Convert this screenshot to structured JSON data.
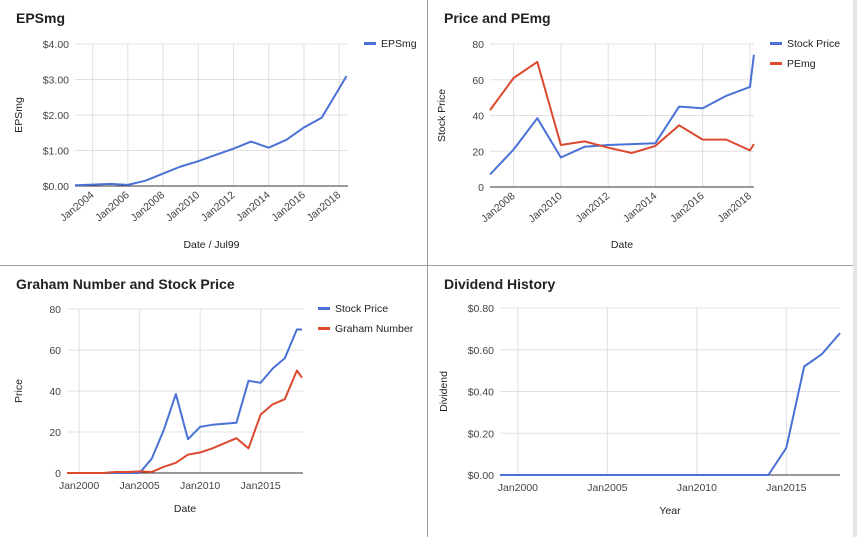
{
  "charts": [
    {
      "title": "EPSmg",
      "type": "line",
      "xlabel": "Date / Jul99",
      "ylabel": "EPSmg",
      "y_ticks": [
        "$4.00",
        "$3.00",
        "$2.00",
        "$1.00",
        "$0.00"
      ],
      "x_ticks": [
        "Jan2004",
        "Jan2006",
        "Jan2008",
        "Jan2010",
        "Jan2012",
        "Jan2014",
        "Jan2016",
        "Jan2018"
      ],
      "legend": "top-right",
      "series": [
        {
          "name": "EPSmg",
          "color": "#4a72d6"
        }
      ]
    },
    {
      "title": "Price and PEmg",
      "type": "line",
      "xlabel": "Date",
      "ylabel": "Stock Price",
      "y_ticks": [
        "80",
        "60",
        "40",
        "20",
        "0"
      ],
      "x_ticks": [
        "Jan2008",
        "Jan2010",
        "Jan2012",
        "Jan2014",
        "Jan2016",
        "Jan2018"
      ],
      "legend": "top-right",
      "series": [
        {
          "name": "Stock Price",
          "color": "#4a72d6"
        },
        {
          "name": "PEmg",
          "color": "#db4a2e"
        }
      ]
    },
    {
      "title": "Graham Number and Stock Price",
      "type": "line",
      "xlabel": "Date",
      "ylabel": "Price",
      "y_ticks": [
        "80",
        "60",
        "40",
        "20",
        "0"
      ],
      "x_ticks": [
        "Jan2000",
        "Jan2005",
        "Jan2010",
        "Jan2015"
      ],
      "legend": "top-right",
      "series": [
        {
          "name": "Stock Price",
          "color": "#4a72d6"
        },
        {
          "name": "Graham Number",
          "color": "#db4a2e"
        }
      ]
    },
    {
      "title": "Dividend History",
      "type": "line",
      "xlabel": "Year",
      "ylabel": "Dividend",
      "y_ticks": [
        "$0.80",
        "$0.60",
        "$0.40",
        "$0.20",
        "$0.00"
      ],
      "x_ticks": [
        "Jan2000",
        "Jan2005",
        "Jan2010",
        "Jan2015"
      ],
      "legend": "none",
      "series": [
        {
          "name": "",
          "color": "#4a72d6"
        }
      ]
    }
  ],
  "chart_data": [
    {
      "type": "line",
      "title": "EPSmg",
      "xlabel": "Date / Jul99",
      "ylabel": "EPSmg",
      "ylim": [
        0,
        4
      ],
      "x": [
        "2003-01",
        "2004-01",
        "2005-01",
        "2006-01",
        "2007-01",
        "2008-01",
        "2009-01",
        "2010-01",
        "2011-01",
        "2012-01",
        "2013-01",
        "2014-01",
        "2015-01",
        "2016-01",
        "2017-01",
        "2018-01",
        "2018-06"
      ],
      "series": [
        {
          "name": "EPSmg",
          "values": [
            0.02,
            0.04,
            0.06,
            0.03,
            0.15,
            0.35,
            0.55,
            0.7,
            0.88,
            1.05,
            1.25,
            1.08,
            1.3,
            1.65,
            1.92,
            2.75,
            3.1
          ]
        }
      ]
    },
    {
      "type": "line",
      "title": "Price and PEmg",
      "xlabel": "Date",
      "ylabel": "Stock Price",
      "ylim": [
        0,
        80
      ],
      "x": [
        "2007-01",
        "2008-01",
        "2009-01",
        "2010-01",
        "2011-01",
        "2012-01",
        "2013-01",
        "2014-01",
        "2015-01",
        "2016-01",
        "2017-01",
        "2018-01",
        "2018-03"
      ],
      "series": [
        {
          "name": "Stock Price",
          "values": [
            7,
            21,
            38.5,
            16.5,
            22.5,
            23.5,
            24,
            24.5,
            45,
            44,
            51,
            56,
            74
          ]
        },
        {
          "name": "PEmg",
          "values": [
            43,
            61,
            70,
            23.5,
            25.5,
            22,
            19,
            23,
            34.5,
            26.5,
            26.5,
            20.5,
            24
          ]
        }
      ]
    },
    {
      "type": "line",
      "title": "Graham Number and Stock Price",
      "xlabel": "Date",
      "ylabel": "Price",
      "ylim": [
        0,
        80
      ],
      "x": [
        "1999-01",
        "2000-01",
        "2001-01",
        "2002-01",
        "2003-01",
        "2004-01",
        "2005-01",
        "2006-01",
        "2007-01",
        "2008-01",
        "2009-01",
        "2010-01",
        "2011-01",
        "2012-01",
        "2013-01",
        "2014-01",
        "2015-01",
        "2016-01",
        "2017-01",
        "2018-01",
        "2018-06"
      ],
      "series": [
        {
          "name": "Stock Price",
          "values": [
            0,
            0,
            0,
            0,
            0,
            0,
            0,
            7,
            21,
            38.5,
            16.5,
            22.5,
            23.5,
            24,
            24.5,
            45,
            44,
            51,
            56,
            70,
            70
          ]
        },
        {
          "name": "Graham Number",
          "values": [
            0,
            0,
            0,
            0,
            0.5,
            0.5,
            0.8,
            0.5,
            3,
            5,
            9,
            10,
            12,
            14.5,
            17,
            12,
            28.5,
            33.5,
            36,
            50,
            46.5
          ]
        }
      ]
    },
    {
      "type": "line",
      "title": "Dividend History",
      "xlabel": "Year",
      "ylabel": "Dividend",
      "ylim": [
        0,
        0.8
      ],
      "x": [
        "1999",
        "2000",
        "2001",
        "2002",
        "2003",
        "2004",
        "2005",
        "2006",
        "2007",
        "2008",
        "2009",
        "2010",
        "2011",
        "2012",
        "2013",
        "2014",
        "2015",
        "2016",
        "2017",
        "2018"
      ],
      "series": [
        {
          "name": "",
          "values": [
            0,
            0,
            0,
            0,
            0,
            0,
            0,
            0,
            0,
            0,
            0,
            0,
            0,
            0,
            0,
            0,
            0.13,
            0.52,
            0.58,
            0.68
          ]
        }
      ]
    }
  ]
}
